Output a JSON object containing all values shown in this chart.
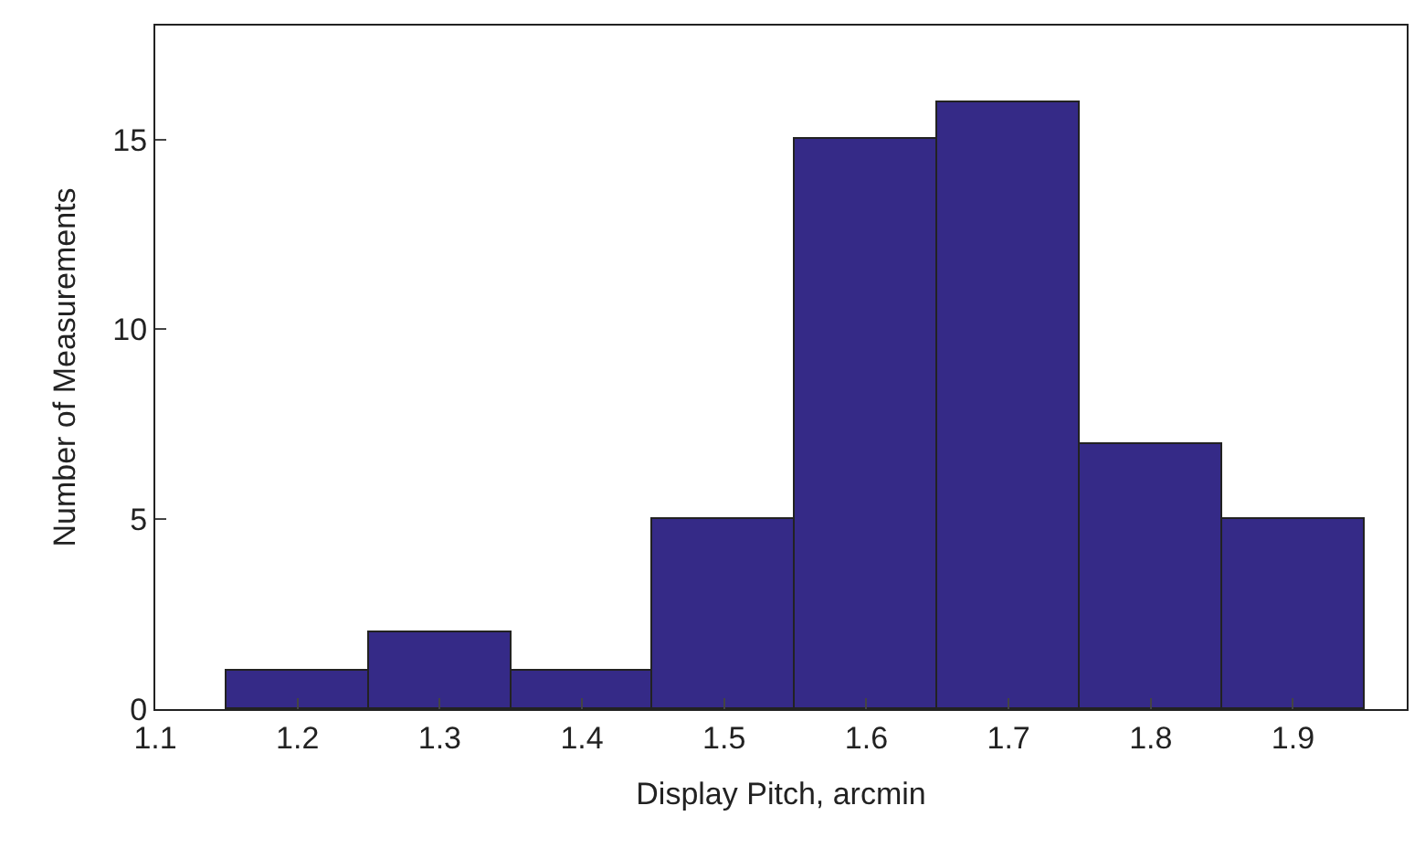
{
  "chart_data": {
    "type": "histogram",
    "xlabel": "Display Pitch, arcmin",
    "ylabel": "Number of Measurements",
    "bins": [
      1.15,
      1.25,
      1.35,
      1.45,
      1.55,
      1.65,
      1.75,
      1.85,
      1.95
    ],
    "values": [
      1,
      2,
      1,
      5,
      15,
      16,
      7,
      5
    ],
    "color": "#352a87",
    "xlim": [
      1.1,
      1.98
    ],
    "xticks": [
      1.1,
      1.2,
      1.3,
      1.4,
      1.5,
      1.6,
      1.7,
      1.8,
      1.9
    ],
    "ylim": [
      0,
      18
    ],
    "yticks": [
      0,
      5,
      10,
      15
    ]
  }
}
